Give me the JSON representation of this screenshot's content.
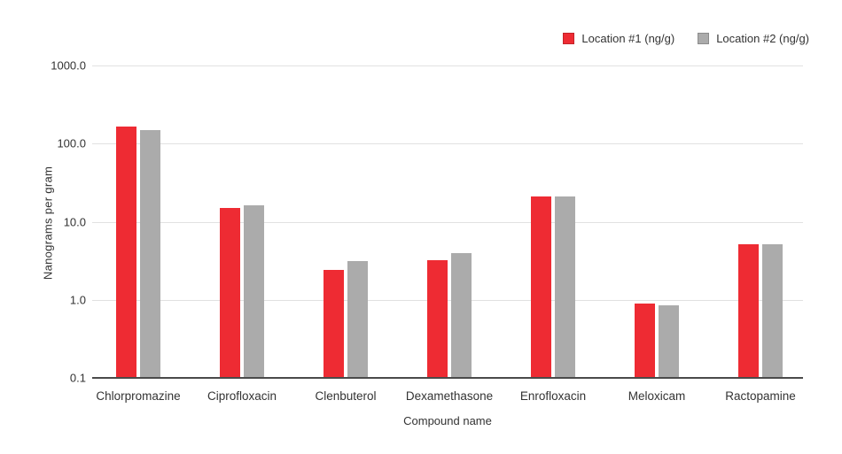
{
  "legend": {
    "items": [
      {
        "label": "Location #1 (ng/g)",
        "color": "#ee2b33"
      },
      {
        "label": "Location #2 (ng/g)",
        "color": "#ababab"
      }
    ]
  },
  "chart_data": {
    "type": "bar",
    "title": "",
    "xlabel": "Compound name",
    "ylabel": "Nanograms per gram",
    "scale": "log",
    "ylim": [
      0.1,
      1000
    ],
    "grid": true,
    "legend_position": "top-right",
    "yticks": [
      {
        "value": 1000,
        "label": "1000.0"
      },
      {
        "value": 100,
        "label": "100.0"
      },
      {
        "value": 10,
        "label": "10.0"
      },
      {
        "value": 1,
        "label": "1.0"
      },
      {
        "value": 0.1,
        "label": "0.1"
      }
    ],
    "categories": [
      "Chlorpromazine",
      "Ciprofloxacin",
      "Clenbuterol",
      "Dexamethasone",
      "Enrofloxacin",
      "Meloxicam",
      "Ractopamine"
    ],
    "series": [
      {
        "name": "Location #1 (ng/g)",
        "color": "#ee2b33",
        "values": [
          165,
          15,
          2.4,
          3.2,
          21,
          0.9,
          5.1
        ]
      },
      {
        "name": "Location #2 (ng/g)",
        "color": "#ababab",
        "values": [
          150,
          16,
          3.1,
          4.0,
          21,
          0.85,
          5.1
        ]
      }
    ],
    "axis_colors": {
      "grid": "#e1e1e1",
      "baseline": "#4a4a4a",
      "text": "#333333"
    }
  }
}
